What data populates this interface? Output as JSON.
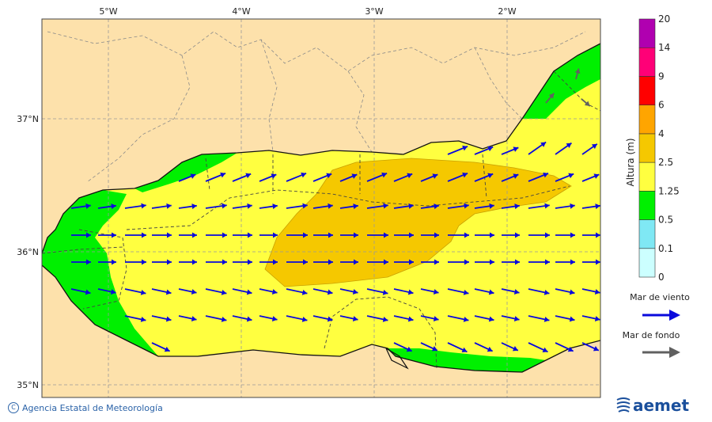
{
  "map": {
    "lon_labels": [
      "5°W",
      "4°W",
      "3°W",
      "2°W"
    ],
    "lat_labels": [
      "37°N",
      "36°N",
      "35°N"
    ],
    "colors": {
      "land": "#fde1ab",
      "water_05_125": "#00f000",
      "water_125_25": "#ffff40",
      "water_25_4": "#f5c800",
      "wind_arrow": "#0a0adc",
      "swell_arrow": "#606060"
    }
  },
  "colorbar": {
    "title": "Altura (m)",
    "levels": [
      "0",
      "0.1",
      "0.5",
      "1.25",
      "2.5",
      "4",
      "6",
      "9",
      "14",
      "20"
    ],
    "colors": [
      "#ccffff",
      "#7fe8f4",
      "#00f000",
      "#ffff40",
      "#f5c800",
      "#ffa500",
      "#ff0000",
      "#ff0077",
      "#b000b0"
    ]
  },
  "legend": {
    "wind_label": "Mar de viento",
    "swell_label": "Mar de fondo"
  },
  "footer": {
    "credit": "Agencia Estatal de Meteorología",
    "logo_text": "aemet"
  }
}
